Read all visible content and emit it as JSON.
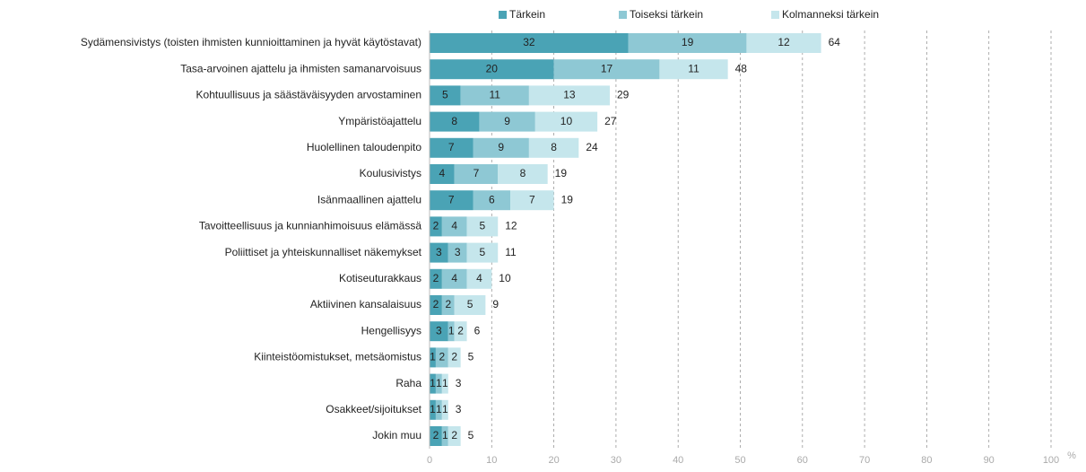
{
  "chart_data": {
    "type": "stacked-barh",
    "categories": [
      "Sydämensivistys (toisten ihmisten kunnioittaminen ja hyvät käytöstavat)",
      "Tasa-arvoinen ajattelu ja ihmisten samanarvoisuus",
      "Kohtuullisuus ja säästäväisyyden arvostaminen",
      "Ympäristöajattelu",
      "Huolellinen taloudenpito",
      "Koulusivistys",
      "Isänmaallinen ajattelu",
      "Tavoitteellisuus ja kunnianhimoisuus elämässä",
      "Poliittiset ja yhteiskunnalliset näkemykset",
      "Kotiseuturakkaus",
      "Aktiivinen kansalaisuus",
      "Hengellisyys",
      "Kiinteistöomistukset, metsäomistus",
      "Raha",
      "Osakkeet/sijoitukset",
      "Jokin muu"
    ],
    "series": [
      {
        "name": "Tärkein",
        "color": "#4aa3b5",
        "values": [
          32,
          20,
          5,
          8,
          7,
          4,
          7,
          2,
          3,
          2,
          2,
          3,
          1,
          1,
          1,
          2
        ]
      },
      {
        "name": "Toiseksi tärkein",
        "color": "#8ec8d4",
        "values": [
          19,
          17,
          11,
          9,
          9,
          7,
          6,
          4,
          3,
          4,
          2,
          1,
          2,
          1,
          1,
          1
        ]
      },
      {
        "name": "Kolmanneksi tärkein",
        "color": "#c5e6ec",
        "values": [
          12,
          11,
          13,
          10,
          8,
          8,
          7,
          5,
          5,
          4,
          5,
          2,
          2,
          1,
          1,
          2
        ]
      }
    ],
    "totals": [
      64,
      48,
      29,
      27,
      24,
      19,
      19,
      12,
      11,
      10,
      9,
      6,
      5,
      3,
      3,
      5
    ],
    "xlim": [
      0,
      100
    ],
    "xticks": [
      0,
      10,
      20,
      30,
      40,
      50,
      60,
      70,
      80,
      90,
      100
    ],
    "xlabel": "%",
    "grid": true,
    "legend": "top"
  }
}
